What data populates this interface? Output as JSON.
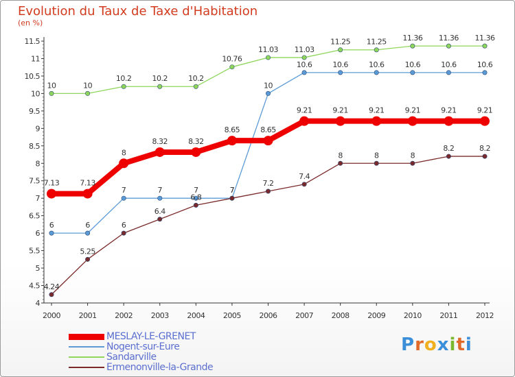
{
  "header": {
    "title": "Evolution du Taux de Taxe d'Habitation",
    "unit": "(en %)"
  },
  "brand": {
    "letters": [
      "P",
      "r",
      "o",
      "x",
      "i",
      "t",
      "i"
    ],
    "colors": [
      "#3a8fd8",
      "#e06a2a",
      "#f0b020",
      "#3a8fd8",
      "#7ab82e",
      "#e06a2a",
      "#3a8fd8"
    ]
  },
  "chart_data": {
    "type": "line",
    "title": "Evolution du Taux de Taxe d'Habitation",
    "ylabel": "(en %)",
    "xlabel": "",
    "ylim": [
      4,
      11.5
    ],
    "ytick_values": [
      4,
      4.5,
      5,
      5.5,
      6,
      6.5,
      7,
      7.5,
      8,
      8.5,
      9,
      9.5,
      10,
      10.5,
      11,
      11.5
    ],
    "ytick_labels": [
      "4",
      "4.5",
      "5",
      "5.5",
      "6",
      "6.5",
      "7",
      "7.5",
      "8",
      "8.5",
      "9",
      "9.5",
      "10",
      "10.5",
      "11",
      "11.5"
    ],
    "categories": [
      "2000",
      "2001",
      "2002",
      "2003",
      "2004",
      "2005",
      "2006",
      "2007",
      "2008",
      "2009",
      "2010",
      "2011",
      "2012"
    ],
    "grid": false,
    "legend_position": "bottom-left",
    "series": [
      {
        "name": "MESLAY-LE-GRENET",
        "color": "#ee0000",
        "values": [
          7.13,
          7.13,
          8,
          8.32,
          8.32,
          8.65,
          8.65,
          9.21,
          9.21,
          9.21,
          9.21,
          9.21,
          9.21
        ],
        "labels": [
          "7.13",
          "7.13",
          "8",
          "8.32",
          "8.32",
          "8.65",
          "8.65",
          "9.21",
          "9.21",
          "9.21",
          "9.21",
          "9.21",
          "9.21"
        ]
      },
      {
        "name": "Nogent-sur-Eure",
        "color": "#5b9bd5",
        "values": [
          6,
          6,
          7,
          7,
          7,
          7,
          10,
          10.6,
          10.6,
          10.6,
          10.6,
          10.6,
          10.6
        ],
        "labels": [
          "6",
          "6",
          "7",
          "7",
          "7",
          "7",
          "10",
          "10.6",
          "10.6",
          "10.6",
          "10.6",
          "10.6",
          "10.6"
        ]
      },
      {
        "name": "Sandarville",
        "color": "#8fd65a",
        "values": [
          10,
          10,
          10.2,
          10.2,
          10.2,
          10.76,
          11.03,
          11.03,
          11.25,
          11.25,
          11.36,
          11.36,
          11.36
        ],
        "labels": [
          "10",
          "10",
          "10.2",
          "10.2",
          "10.2",
          "10.76",
          "11.03",
          "11.03",
          "11.25",
          "11.25",
          "11.36",
          "11.36",
          "11.36"
        ]
      },
      {
        "name": "Ermenonville-la-Grande",
        "color": "#7a2a2a",
        "values": [
          4.24,
          5.25,
          6,
          6.4,
          6.8,
          7,
          7.2,
          7.4,
          8,
          8,
          8,
          8.2,
          8.2
        ],
        "labels": [
          "4.24",
          "5.25",
          "6",
          "6.4",
          "6.8",
          "7",
          "7.2",
          "7.4",
          "8",
          "8",
          "8",
          "8.2",
          "8.2"
        ]
      }
    ]
  }
}
